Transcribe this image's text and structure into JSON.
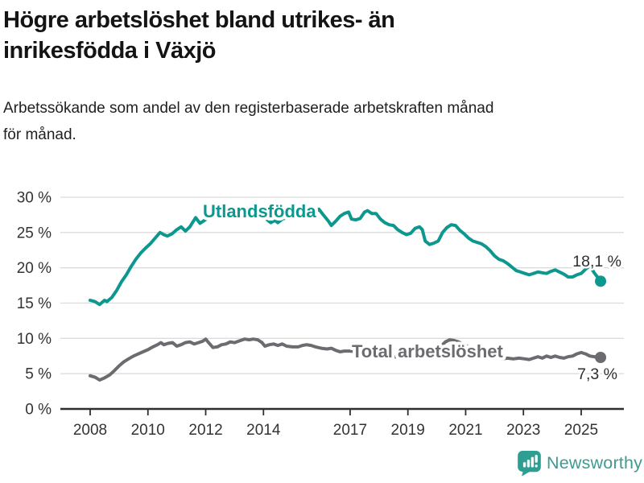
{
  "header": {
    "title": "Högre arbetslöshet bland utrikes- än\ninrikesfödda i Växjö",
    "subtitle": "Arbetssökande som andel av den registerbaserade arbetskraften månad\nför månad."
  },
  "chart_data": {
    "type": "line",
    "title": "Högre arbetslöshet bland utrikes- än inrikesfödda i Växjö",
    "subtitle": "Arbetssökande som andel av den registerbaserade arbetskraften månad för månad.",
    "x_unit": "decimal year (monthly observations)",
    "xlim": [
      2006.97,
      2026.5
    ],
    "ylim": [
      0,
      30
    ],
    "yticks": [
      0,
      5,
      10,
      15,
      20,
      25,
      30
    ],
    "ytick_labels": [
      "0 %",
      "5 %",
      "10 %",
      "15 %",
      "20 %",
      "25 %",
      "30 %"
    ],
    "xticks": [
      2008,
      2010,
      2012,
      2014,
      2017,
      2019,
      2021,
      2023,
      2025
    ],
    "xtick_labels": [
      "2008",
      "2010",
      "2012",
      "2014",
      "2017",
      "2019",
      "2021",
      "2023",
      "2025"
    ],
    "grid": true,
    "legend_position": "inline-labels",
    "grid_color": "#dcdcdc",
    "axis_color": "#2e2e2e",
    "tick_label_color": "#333333",
    "end_label_color": "#2e2e2e",
    "series": [
      {
        "name": "Total arbetslöshet",
        "color": "#6B6B70",
        "end_label": "7,3 %",
        "end_value": 7.3,
        "points": [
          [
            2008.0,
            4.7
          ],
          [
            2008.17,
            4.5
          ],
          [
            2008.33,
            4.1
          ],
          [
            2008.5,
            4.4
          ],
          [
            2008.67,
            4.8
          ],
          [
            2008.83,
            5.4
          ],
          [
            2009.0,
            6.1
          ],
          [
            2009.17,
            6.7
          ],
          [
            2009.33,
            7.1
          ],
          [
            2009.5,
            7.5
          ],
          [
            2009.67,
            7.8
          ],
          [
            2009.83,
            8.1
          ],
          [
            2010.0,
            8.4
          ],
          [
            2010.17,
            8.8
          ],
          [
            2010.33,
            9.1
          ],
          [
            2010.45,
            9.4
          ],
          [
            2010.55,
            9.1
          ],
          [
            2010.7,
            9.3
          ],
          [
            2010.85,
            9.4
          ],
          [
            2011.0,
            8.9
          ],
          [
            2011.15,
            9.1
          ],
          [
            2011.3,
            9.4
          ],
          [
            2011.45,
            9.5
          ],
          [
            2011.6,
            9.2
          ],
          [
            2011.75,
            9.4
          ],
          [
            2011.9,
            9.6
          ],
          [
            2012.0,
            9.9
          ],
          [
            2012.1,
            9.4
          ],
          [
            2012.25,
            8.7
          ],
          [
            2012.4,
            8.8
          ],
          [
            2012.55,
            9.1
          ],
          [
            2012.7,
            9.2
          ],
          [
            2012.85,
            9.5
          ],
          [
            2013.0,
            9.4
          ],
          [
            2013.2,
            9.7
          ],
          [
            2013.35,
            9.9
          ],
          [
            2013.5,
            9.8
          ],
          [
            2013.65,
            9.9
          ],
          [
            2013.8,
            9.8
          ],
          [
            2013.95,
            9.4
          ],
          [
            2014.05,
            8.9
          ],
          [
            2014.2,
            9.1
          ],
          [
            2014.35,
            9.2
          ],
          [
            2014.5,
            9.0
          ],
          [
            2014.65,
            9.2
          ],
          [
            2014.8,
            8.9
          ],
          [
            2015.0,
            8.8
          ],
          [
            2015.2,
            8.8
          ],
          [
            2015.35,
            9.0
          ],
          [
            2015.5,
            9.1
          ],
          [
            2015.65,
            9.0
          ],
          [
            2015.8,
            8.8
          ],
          [
            2016.0,
            8.6
          ],
          [
            2016.2,
            8.5
          ],
          [
            2016.35,
            8.6
          ],
          [
            2016.5,
            8.3
          ],
          [
            2016.65,
            8.1
          ],
          [
            2016.8,
            8.2
          ],
          [
            2017.0,
            8.2
          ],
          [
            2017.25,
            8.1
          ],
          [
            2017.5,
            8.0
          ],
          [
            2017.75,
            7.8
          ],
          [
            2018.0,
            7.6
          ],
          [
            2018.25,
            7.5
          ],
          [
            2018.5,
            7.4
          ],
          [
            2018.75,
            7.3
          ],
          [
            2019.0,
            7.3
          ],
          [
            2019.25,
            7.4
          ],
          [
            2019.5,
            7.3
          ],
          [
            2019.75,
            7.4
          ],
          [
            2020.0,
            7.9
          ],
          [
            2020.15,
            8.9
          ],
          [
            2020.3,
            9.5
          ],
          [
            2020.45,
            9.8
          ],
          [
            2020.6,
            9.7
          ],
          [
            2020.75,
            9.5
          ],
          [
            2020.9,
            9.2
          ],
          [
            2021.05,
            8.9
          ],
          [
            2021.25,
            8.5
          ],
          [
            2021.45,
            8.1
          ],
          [
            2021.65,
            7.8
          ],
          [
            2021.85,
            7.5
          ],
          [
            2022.05,
            7.3
          ],
          [
            2022.25,
            7.1
          ],
          [
            2022.45,
            7.2
          ],
          [
            2022.65,
            7.1
          ],
          [
            2022.85,
            7.2
          ],
          [
            2023.05,
            7.1
          ],
          [
            2023.2,
            7.0
          ],
          [
            2023.35,
            7.2
          ],
          [
            2023.5,
            7.4
          ],
          [
            2023.65,
            7.2
          ],
          [
            2023.8,
            7.5
          ],
          [
            2023.95,
            7.3
          ],
          [
            2024.1,
            7.5
          ],
          [
            2024.25,
            7.3
          ],
          [
            2024.4,
            7.2
          ],
          [
            2024.55,
            7.4
          ],
          [
            2024.7,
            7.5
          ],
          [
            2024.85,
            7.8
          ],
          [
            2025.0,
            8.0
          ],
          [
            2025.15,
            7.8
          ],
          [
            2025.3,
            7.5
          ],
          [
            2025.45,
            7.4
          ],
          [
            2025.6,
            7.3
          ],
          [
            2025.67,
            7.3
          ]
        ]
      },
      {
        "name": "Utlandsfödda",
        "color": "#0D988F",
        "end_label": "18,1 %",
        "end_value": 18.1,
        "points": [
          [
            2008.0,
            15.4
          ],
          [
            2008.17,
            15.2
          ],
          [
            2008.33,
            14.8
          ],
          [
            2008.5,
            15.4
          ],
          [
            2008.58,
            15.2
          ],
          [
            2008.75,
            15.8
          ],
          [
            2008.92,
            16.8
          ],
          [
            2009.08,
            18.0
          ],
          [
            2009.25,
            19.0
          ],
          [
            2009.42,
            20.2
          ],
          [
            2009.58,
            21.2
          ],
          [
            2009.75,
            22.1
          ],
          [
            2009.92,
            22.8
          ],
          [
            2010.08,
            23.4
          ],
          [
            2010.25,
            24.2
          ],
          [
            2010.42,
            25.0
          ],
          [
            2010.55,
            24.7
          ],
          [
            2010.67,
            24.5
          ],
          [
            2010.83,
            24.8
          ],
          [
            2011.0,
            25.4
          ],
          [
            2011.15,
            25.8
          ],
          [
            2011.3,
            25.2
          ],
          [
            2011.45,
            25.8
          ],
          [
            2011.65,
            27.1
          ],
          [
            2011.8,
            26.3
          ],
          [
            2011.95,
            26.7
          ],
          [
            2012.1,
            27.1
          ],
          [
            2012.3,
            27.4
          ],
          [
            2012.5,
            27.2
          ],
          [
            2012.7,
            27.6
          ],
          [
            2012.9,
            27.5
          ],
          [
            2013.1,
            27.8
          ],
          [
            2013.3,
            27.6
          ],
          [
            2013.5,
            27.4
          ],
          [
            2013.7,
            27.6
          ],
          [
            2013.9,
            27.3
          ],
          [
            2014.1,
            26.9
          ],
          [
            2014.25,
            26.4
          ],
          [
            2014.4,
            26.7
          ],
          [
            2014.5,
            26.4
          ],
          [
            2014.65,
            26.9
          ],
          [
            2014.8,
            27.1
          ],
          [
            2015.0,
            27.2
          ],
          [
            2015.2,
            27.3
          ],
          [
            2015.4,
            27.2
          ],
          [
            2015.6,
            27.5
          ],
          [
            2015.8,
            27.9
          ],
          [
            2015.92,
            28.3
          ],
          [
            2016.05,
            27.6
          ],
          [
            2016.25,
            26.6
          ],
          [
            2016.35,
            26.0
          ],
          [
            2016.5,
            26.6
          ],
          [
            2016.65,
            27.3
          ],
          [
            2016.8,
            27.7
          ],
          [
            2016.95,
            27.9
          ],
          [
            2017.05,
            26.9
          ],
          [
            2017.2,
            26.8
          ],
          [
            2017.35,
            27.0
          ],
          [
            2017.5,
            27.9
          ],
          [
            2017.6,
            28.1
          ],
          [
            2017.75,
            27.7
          ],
          [
            2017.9,
            27.7
          ],
          [
            2018.05,
            26.9
          ],
          [
            2018.2,
            26.4
          ],
          [
            2018.35,
            26.1
          ],
          [
            2018.5,
            26.0
          ],
          [
            2018.65,
            25.4
          ],
          [
            2018.8,
            25.0
          ],
          [
            2018.95,
            24.7
          ],
          [
            2019.1,
            24.9
          ],
          [
            2019.25,
            25.6
          ],
          [
            2019.4,
            25.8
          ],
          [
            2019.5,
            25.4
          ],
          [
            2019.6,
            23.8
          ],
          [
            2019.75,
            23.3
          ],
          [
            2019.9,
            23.5
          ],
          [
            2020.05,
            23.8
          ],
          [
            2020.2,
            25.0
          ],
          [
            2020.35,
            25.7
          ],
          [
            2020.5,
            26.1
          ],
          [
            2020.65,
            26.0
          ],
          [
            2020.8,
            25.3
          ],
          [
            2020.95,
            24.8
          ],
          [
            2021.1,
            24.2
          ],
          [
            2021.25,
            23.8
          ],
          [
            2021.4,
            23.6
          ],
          [
            2021.55,
            23.4
          ],
          [
            2021.7,
            23.0
          ],
          [
            2021.85,
            22.4
          ],
          [
            2022.0,
            21.7
          ],
          [
            2022.15,
            21.2
          ],
          [
            2022.3,
            21.0
          ],
          [
            2022.45,
            20.6
          ],
          [
            2022.6,
            20.1
          ],
          [
            2022.75,
            19.6
          ],
          [
            2022.9,
            19.4
          ],
          [
            2023.05,
            19.2
          ],
          [
            2023.2,
            19.0
          ],
          [
            2023.35,
            19.2
          ],
          [
            2023.5,
            19.4
          ],
          [
            2023.65,
            19.3
          ],
          [
            2023.8,
            19.2
          ],
          [
            2023.95,
            19.5
          ],
          [
            2024.1,
            19.7
          ],
          [
            2024.25,
            19.4
          ],
          [
            2024.4,
            19.1
          ],
          [
            2024.55,
            18.7
          ],
          [
            2024.7,
            18.7
          ],
          [
            2024.85,
            19.0
          ],
          [
            2025.0,
            19.2
          ],
          [
            2025.15,
            19.8
          ],
          [
            2025.3,
            20.3
          ],
          [
            2025.45,
            19.3
          ],
          [
            2025.6,
            18.5
          ],
          [
            2025.67,
            18.1
          ]
        ]
      }
    ]
  },
  "footer": {
    "brand": "Newsworthy",
    "brand_color": "#3E9B91",
    "logo_icon": "bar-chart-speech-bubble"
  }
}
